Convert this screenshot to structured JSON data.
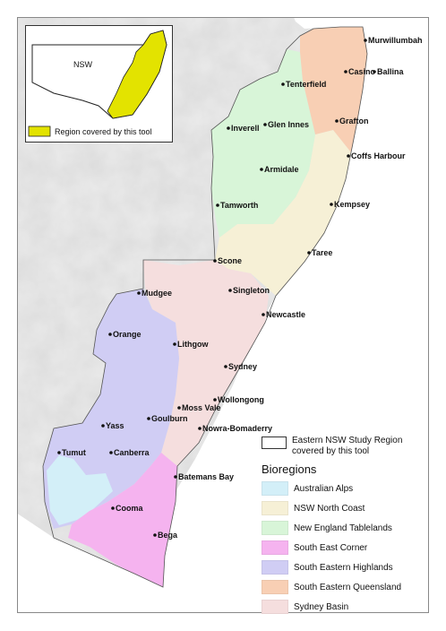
{
  "map": {
    "towns": [
      {
        "name": "Murwillumbah"
      },
      {
        "name": "Casino"
      },
      {
        "name": "Ballina"
      },
      {
        "name": "Tenterfield"
      },
      {
        "name": "Grafton"
      },
      {
        "name": "Inverell"
      },
      {
        "name": "Glen Innes"
      },
      {
        "name": "Coffs Harbour"
      },
      {
        "name": "Armidale"
      },
      {
        "name": "Tamworth"
      },
      {
        "name": "Kempsey"
      },
      {
        "name": "Taree"
      },
      {
        "name": "Scone"
      },
      {
        "name": "Singleton"
      },
      {
        "name": "Mudgee"
      },
      {
        "name": "Newcastle"
      },
      {
        "name": "Orange"
      },
      {
        "name": "Lithgow"
      },
      {
        "name": "Sydney"
      },
      {
        "name": "Wollongong"
      },
      {
        "name": "Moss Vale"
      },
      {
        "name": "Goulburn"
      },
      {
        "name": "Nowra-Bomaderry"
      },
      {
        "name": "Yass"
      },
      {
        "name": "Tumut"
      },
      {
        "name": "Canberra"
      },
      {
        "name": "Batemans Bay"
      },
      {
        "name": "Cooma"
      },
      {
        "name": "Bega"
      }
    ]
  },
  "inset": {
    "state_label": "NSW",
    "legend_label": "Region covered by this tool",
    "highlight_color": "#e3e300"
  },
  "legend": {
    "study_region_label": "Eastern NSW Study Region covered by this tool",
    "heading": "Bioregions",
    "items": [
      {
        "label": "Australian Alps",
        "color": "#d3eff8"
      },
      {
        "label": "NSW North Coast",
        "color": "#f6f0d6"
      },
      {
        "label": "New England Tablelands",
        "color": "#d8f5d8"
      },
      {
        "label": "South East Corner",
        "color": "#f5b3ef"
      },
      {
        "label": "South Eastern Highlands",
        "color": "#d0cdf4"
      },
      {
        "label": "South Eastern Queensland",
        "color": "#f8cfb4"
      },
      {
        "label": "Sydney Basin",
        "color": "#f5dede"
      }
    ]
  }
}
